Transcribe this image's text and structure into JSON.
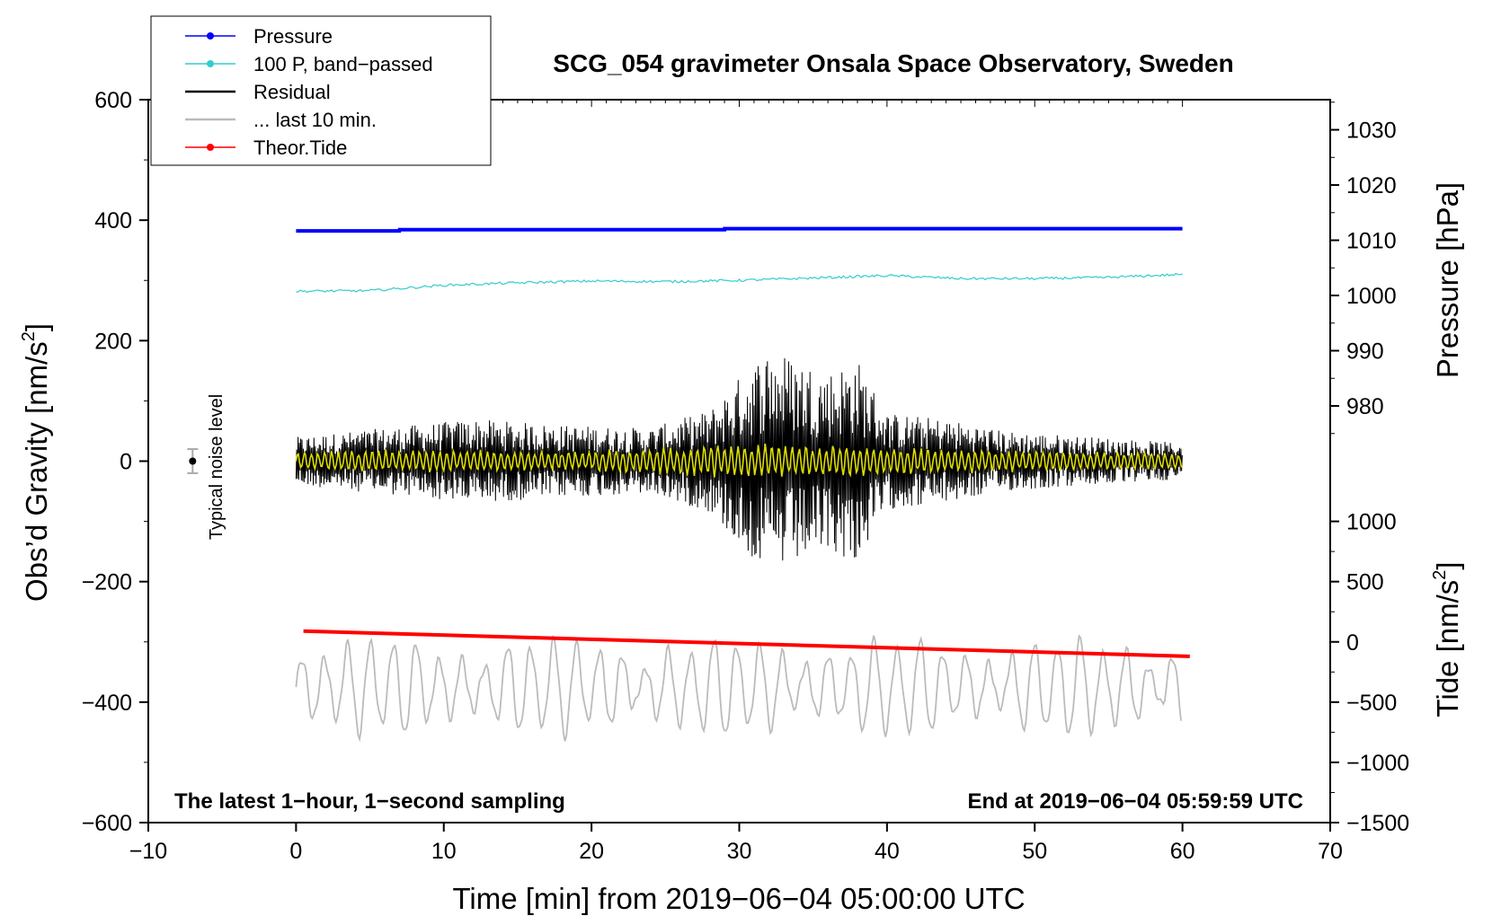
{
  "chart_data": {
    "type": "line",
    "title": "SCG_054 gravimeter Onsala Space Observatory, Sweden",
    "xlabel": "Time [min] from 2019−06−04 05:00:00 UTC",
    "ylabel_left": "Obs’d Gravity [nm/s",
    "ylabel_left_sup": "2",
    "ylabel_left_close": "]",
    "ylabel_right_pressure": "Pressure [hPa]",
    "ylabel_right_tide": "Tide [nm/s",
    "ylabel_right_tide_sup": "2",
    "ylabel_right_tide_close": "]",
    "xlim": [
      -10,
      70
    ],
    "ylim_left": [
      -600,
      600
    ],
    "x_ticks": [
      "−10",
      "0",
      "10",
      "20",
      "30",
      "40",
      "50",
      "60",
      "70"
    ],
    "x_tick_values": [
      -10,
      0,
      10,
      20,
      30,
      40,
      50,
      60,
      70
    ],
    "y_left_ticks": [
      "600",
      "400",
      "200",
      "0",
      "−200",
      "−400",
      "−600"
    ],
    "y_left_tick_values": [
      600,
      400,
      200,
      0,
      -200,
      -400,
      -600
    ],
    "pressure_ticks": [
      "1030",
      "1020",
      "1010",
      "1000",
      "990",
      "980"
    ],
    "pressure_tick_values": [
      1030,
      1020,
      1010,
      1000,
      990,
      980
    ],
    "pressure_map": {
      "value_a": 1000,
      "grav_a": 275,
      "value_b": 1030,
      "grav_b": 550
    },
    "tide_ticks": [
      "1000",
      "500",
      "0",
      "−500",
      "−1000",
      "−1500"
    ],
    "tide_tick_values": [
      1000,
      500,
      0,
      -500,
      -1000,
      -1500
    ],
    "tide_map": {
      "value_a": 0,
      "grav_a": -300,
      "value_b": 1000,
      "grav_b": -100
    },
    "annotation_left": "The latest 1−hour, 1−second sampling",
    "annotation_right": "End at 2019−06−04 05:59:59 UTC",
    "noise_label": "Typical noise level",
    "noise_marker": {
      "x": -7,
      "y": 0,
      "err": 20
    },
    "legend": [
      {
        "label": "Pressure",
        "color": "#0000ff",
        "marker": true
      },
      {
        "label": "100 P, band−passed",
        "color": "#33cccc",
        "marker": true
      },
      {
        "label": "Residual",
        "color": "#000000",
        "marker": false
      },
      {
        "label": "... last 10 min.",
        "color": "#bbbbbb",
        "marker": false
      },
      {
        "label": "Theor.Tide",
        "color": "#ff0000",
        "marker": true
      }
    ],
    "series": [
      {
        "name": "Pressure",
        "color": "#0000ff",
        "axis": "pressure",
        "x": [
          0,
          7,
          7.01,
          29,
          29.01,
          60
        ],
        "y": [
          1011.7,
          1011.7,
          1011.9,
          1011.9,
          1012.1,
          1012.1
        ]
      },
      {
        "name": "100 P, band-passed",
        "color": "#33cccc",
        "axis": "gravity",
        "x": [
          0,
          5,
          10,
          15,
          20,
          25,
          30,
          35,
          40,
          45,
          50,
          55,
          60
        ],
        "y": [
          282,
          283,
          292,
          296,
          299,
          298,
          300,
          304,
          308,
          303,
          303,
          305,
          310
        ]
      },
      {
        "name": "Residual",
        "color": "#000000",
        "axis": "gravity",
        "x": [
          0,
          6,
          12,
          18,
          24,
          28,
          30,
          32,
          34,
          36,
          38,
          40,
          44,
          48,
          54,
          60
        ],
        "y": [
          40,
          55,
          70,
          60,
          55,
          85,
          140,
          190,
          170,
          150,
          170,
          80,
          70,
          50,
          40,
          30
        ]
      },
      {
        "name": "... last 10 min.",
        "color": "#bbbbbb",
        "axis": "gravity",
        "x": [
          0,
          60
        ],
        "y": [
          -375,
          -375
        ]
      },
      {
        "name": "Theor.Tide",
        "color": "#ff0000",
        "axis": "tide",
        "x": [
          0.5,
          60.5
        ],
        "y": [
          90,
          -120
        ]
      },
      {
        "name": "Smoothed residual",
        "color": "#dddd00",
        "axis": "gravity",
        "x": [
          0,
          10,
          20,
          28,
          32,
          36,
          40,
          50,
          60
        ],
        "y": [
          18,
          20,
          18,
          28,
          30,
          28,
          24,
          18,
          15
        ]
      }
    ]
  }
}
